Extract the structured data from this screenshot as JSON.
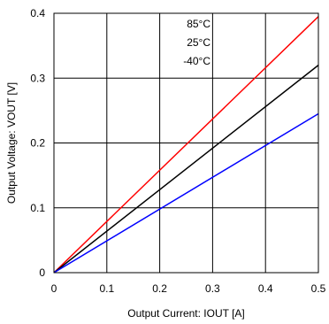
{
  "chart_data": {
    "type": "line",
    "title": "",
    "xlabel": "Output Current: IOUT [A]",
    "ylabel": "Output Voltage: VOUT [V]",
    "xlim": [
      0,
      0.5
    ],
    "ylim": [
      0,
      0.4
    ],
    "x_ticks": [
      "0",
      "0.1",
      "0.2",
      "0.3",
      "0.4",
      "0.5"
    ],
    "y_ticks": [
      "0",
      "0.1",
      "0.2",
      "0.3",
      "0.4"
    ],
    "grid": true,
    "legend_placement": "top-center",
    "series": [
      {
        "name": "85°C",
        "color": "#ff0000",
        "x": [
          0,
          0.5
        ],
        "y": [
          0,
          0.395
        ]
      },
      {
        "name": "25°C",
        "color": "#000000",
        "x": [
          0,
          0.5
        ],
        "y": [
          0,
          0.32
        ]
      },
      {
        "name": "-40°C",
        "color": "#0000ff",
        "x": [
          0,
          0.5
        ],
        "y": [
          0,
          0.245
        ]
      }
    ]
  }
}
